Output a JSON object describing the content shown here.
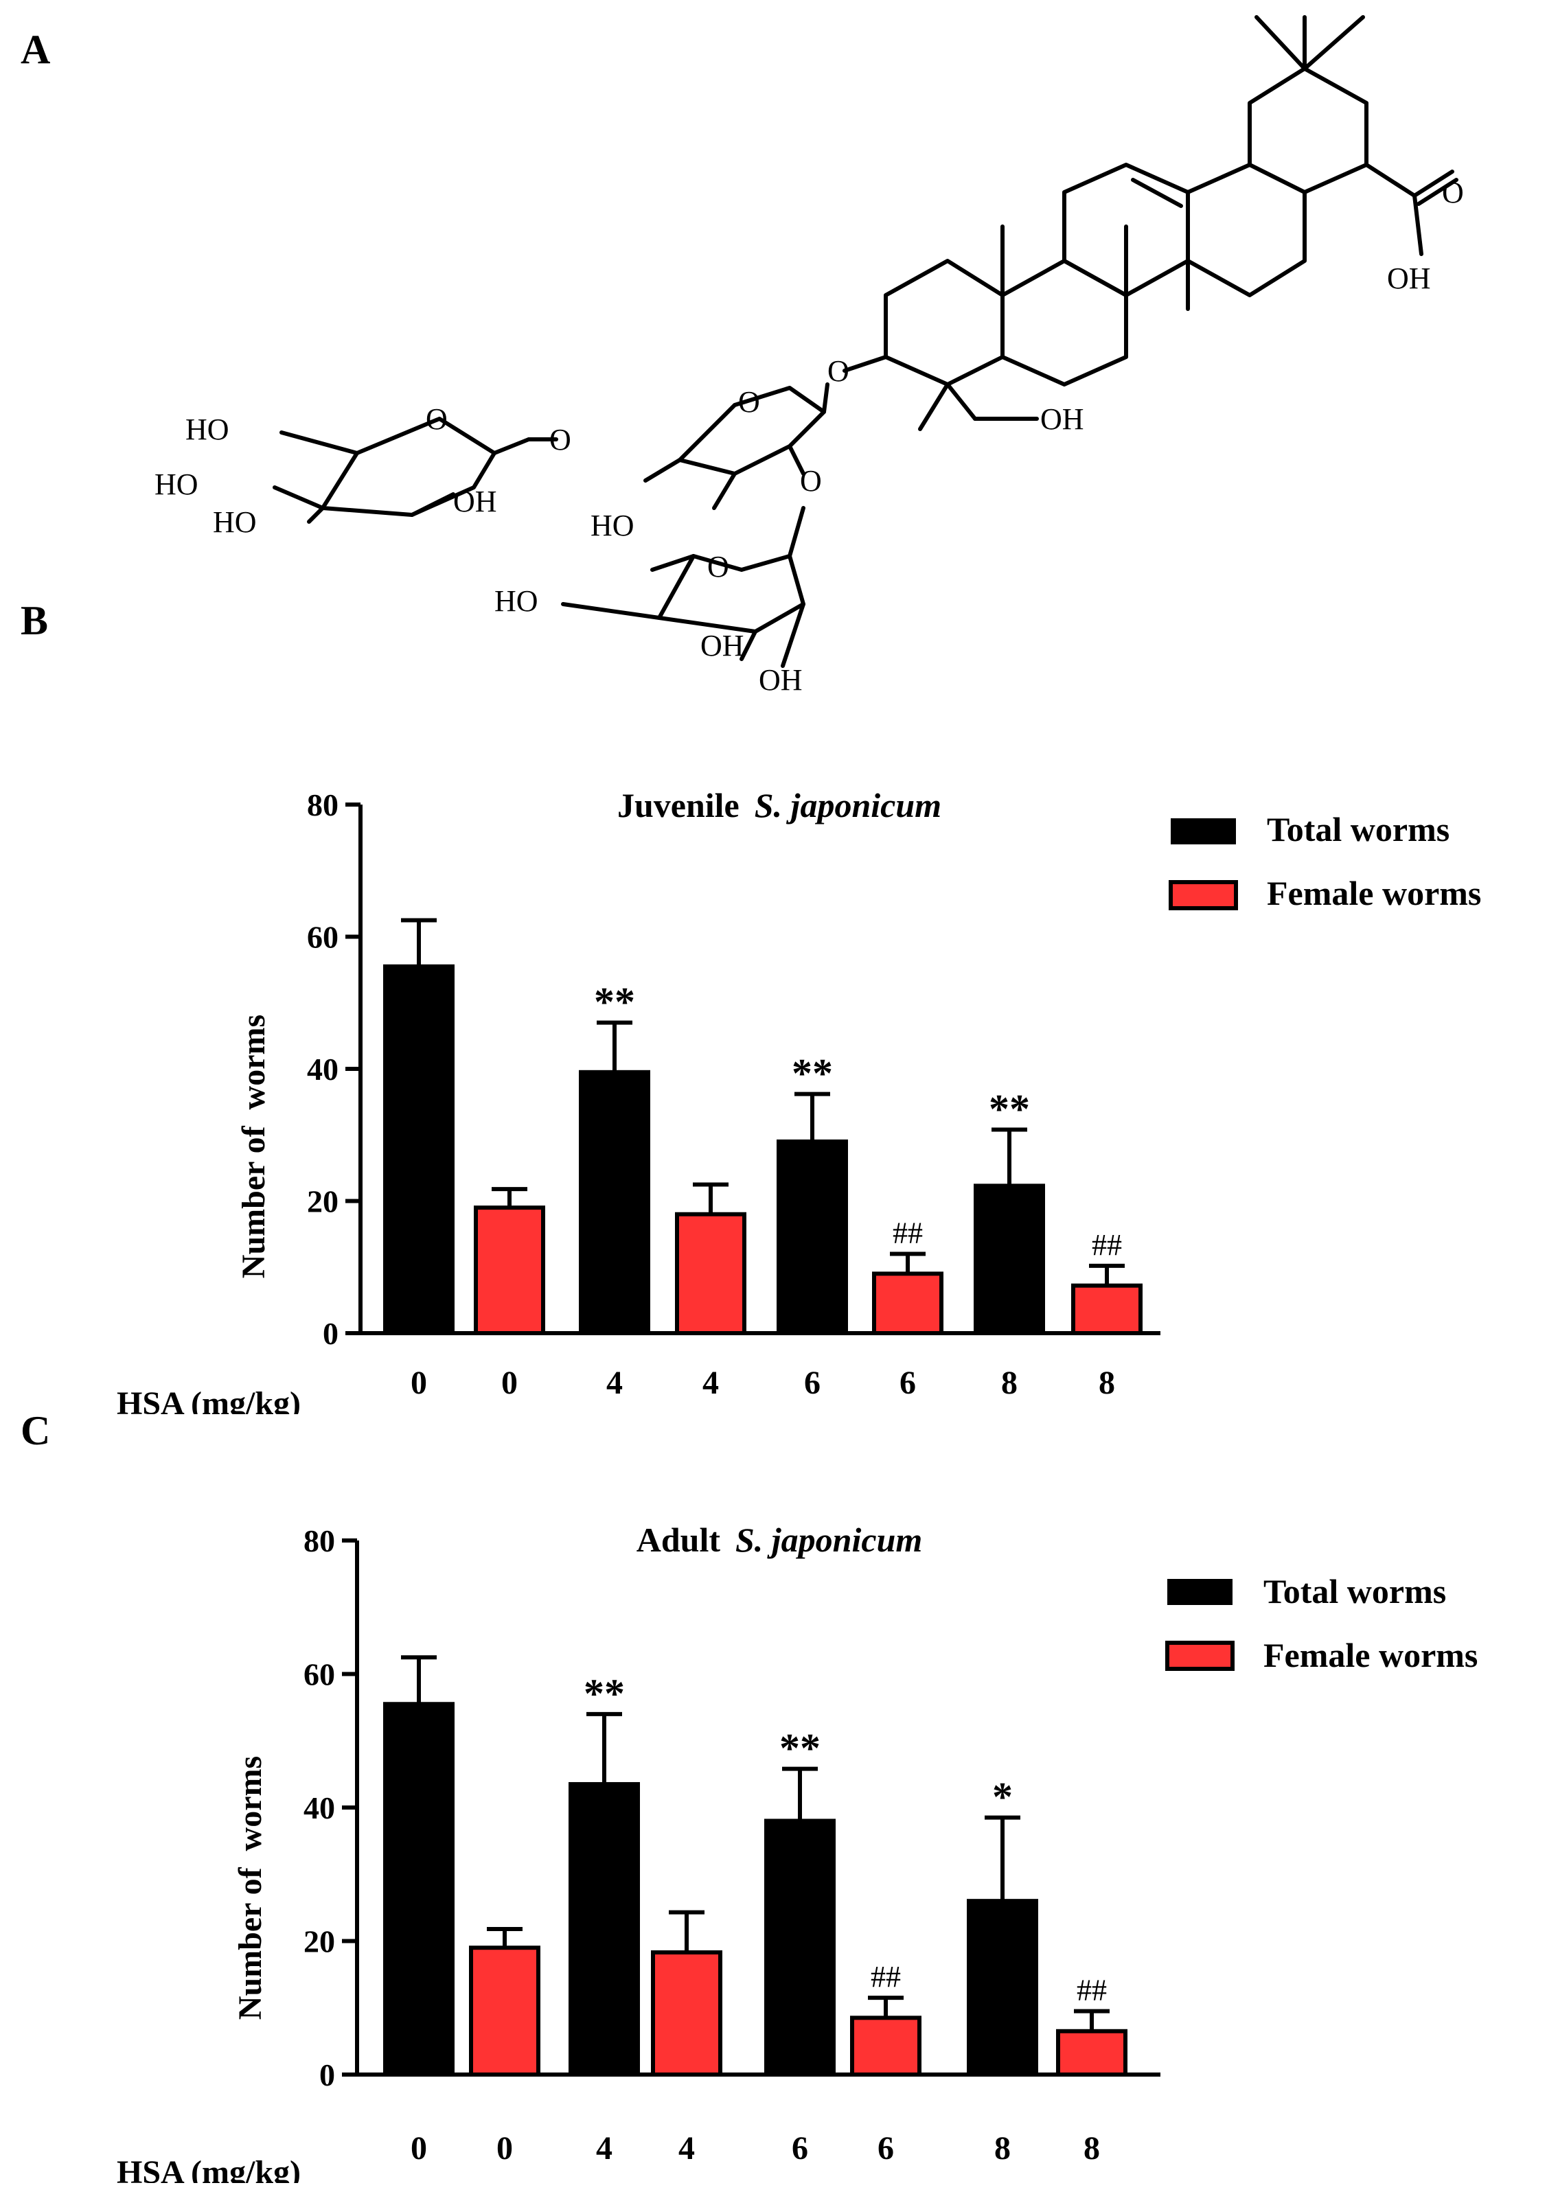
{
  "panels": {
    "a_label": "A",
    "b_label": "B",
    "c_label": "C"
  },
  "structure": {
    "labels": {
      "o_ring1": "O",
      "ho_a": "HO",
      "ho_b": "HO",
      "ho_c": "HO",
      "oh_a": "OH",
      "o_link1": "O",
      "o_ring2": "O",
      "ho_d": "HO",
      "o_link2": "O",
      "o_ring3": "O",
      "ho_e": "HO",
      "oh_b": "OH",
      "oh_c": "OH",
      "o_link3": "O",
      "oh_d": "OH",
      "o_acid": "O",
      "oh_acid": "OH"
    }
  },
  "colors": {
    "total": "#000000",
    "female": "#ff3333"
  },
  "chart_data": [
    {
      "type": "bar",
      "title_plain": "Juvenile",
      "title_italic": "S. japonicum",
      "xlabel": "HSA (mg/kg)",
      "ylabel": "Number of  worms",
      "ylim": [
        0,
        80
      ],
      "yticks": [
        "0",
        "20",
        "40",
        "60",
        "80"
      ],
      "categories": [
        "0",
        "0",
        "4",
        "4",
        "6",
        "6",
        "8",
        "8"
      ],
      "series_names": {
        "total": "Total worms",
        "female": "Female worms"
      },
      "bars": [
        {
          "series": "total",
          "value": 55.5,
          "error": 7,
          "sig": ""
        },
        {
          "series": "female",
          "value": 19,
          "error": 2.8,
          "sig": ""
        },
        {
          "series": "total",
          "value": 39.5,
          "error": 7.5,
          "sig": "**"
        },
        {
          "series": "female",
          "value": 18,
          "error": 4.5,
          "sig": ""
        },
        {
          "series": "total",
          "value": 29,
          "error": 7.2,
          "sig": "**"
        },
        {
          "series": "female",
          "value": 9,
          "error": 3,
          "sig": "##"
        },
        {
          "series": "total",
          "value": 22.3,
          "error": 8.5,
          "sig": "**"
        },
        {
          "series": "female",
          "value": 7.2,
          "error": 3,
          "sig": "##"
        }
      ]
    },
    {
      "type": "bar",
      "title_plain": "Adult",
      "title_italic": "S. japonicum",
      "xlabel": "HSA (mg/kg)",
      "ylabel": "Number of  worms",
      "ylim": [
        0,
        80
      ],
      "yticks": [
        "0",
        "20",
        "40",
        "60",
        "80"
      ],
      "categories": [
        "0",
        "0",
        "4",
        "4",
        "6",
        "6",
        "8",
        "8"
      ],
      "series_names": {
        "total": "Total worms",
        "female": "Female worms"
      },
      "bars": [
        {
          "series": "total",
          "value": 55.5,
          "error": 7,
          "sig": ""
        },
        {
          "series": "female",
          "value": 19,
          "error": 2.8,
          "sig": ""
        },
        {
          "series": "total",
          "value": 43.5,
          "error": 10.5,
          "sig": "**"
        },
        {
          "series": "female",
          "value": 18.3,
          "error": 6,
          "sig": ""
        },
        {
          "series": "total",
          "value": 38,
          "error": 7.8,
          "sig": "**"
        },
        {
          "series": "female",
          "value": 8.5,
          "error": 3,
          "sig": "##"
        },
        {
          "series": "total",
          "value": 26,
          "error": 12.5,
          "sig": "*"
        },
        {
          "series": "female",
          "value": 6.5,
          "error": 3,
          "sig": "##"
        }
      ]
    }
  ]
}
